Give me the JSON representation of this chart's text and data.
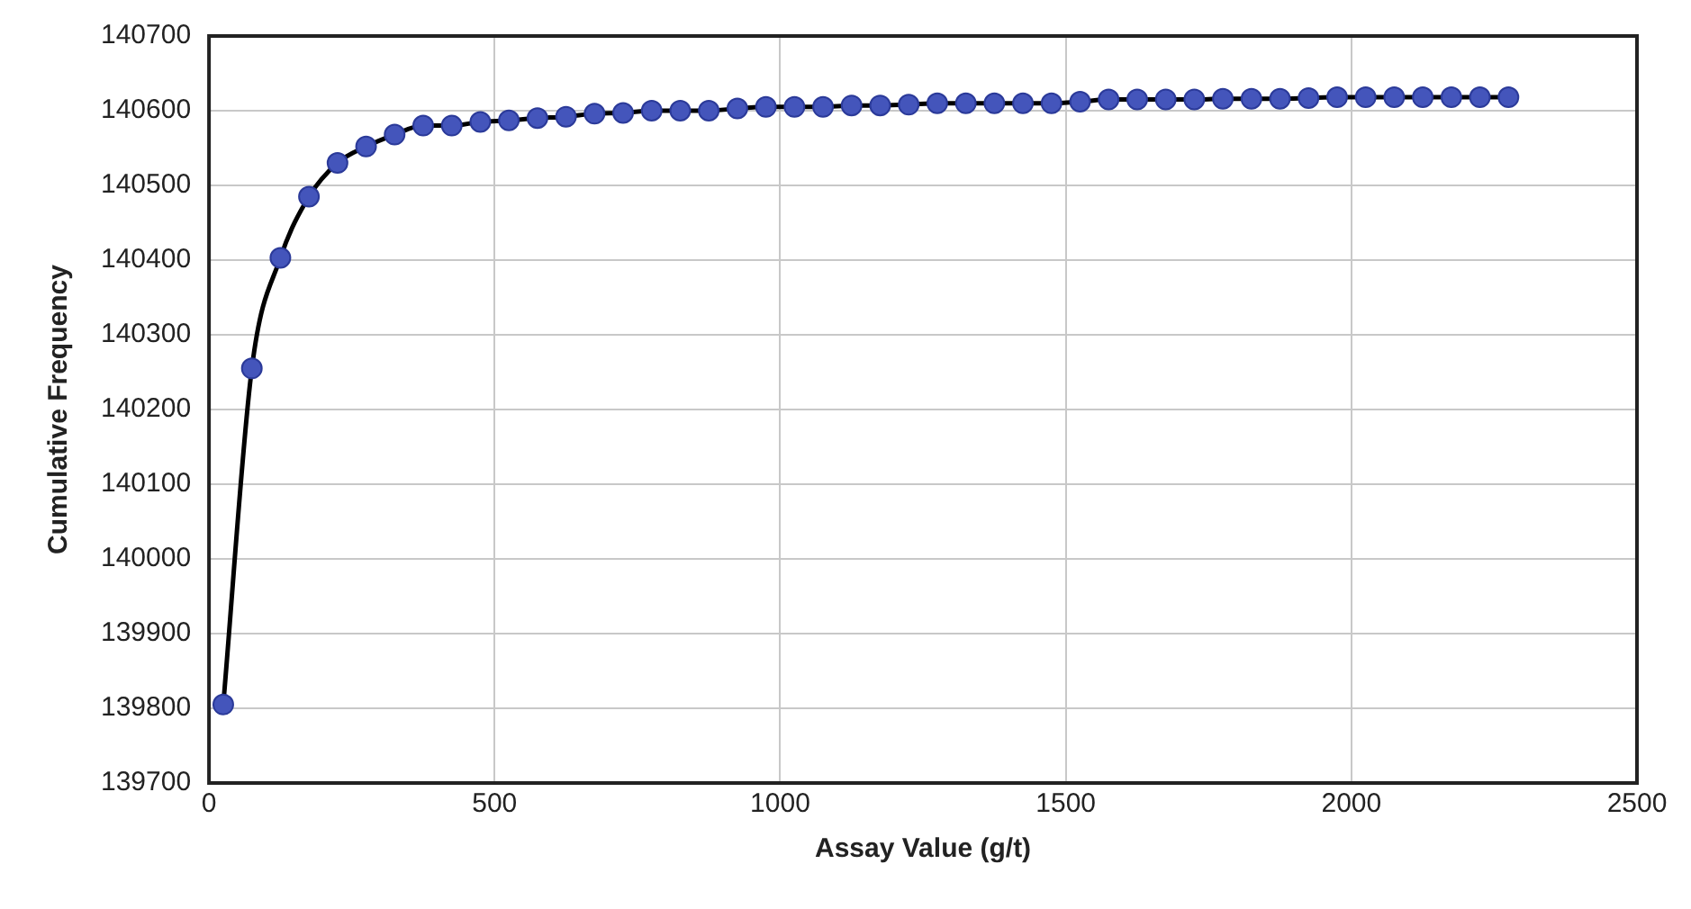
{
  "chart_data": {
    "type": "line",
    "xlabel": "Assay Value (g/t)",
    "ylabel": "Cumulative Frequency",
    "x": [
      25,
      75,
      125,
      175,
      225,
      275,
      325,
      375,
      425,
      475,
      525,
      575,
      625,
      675,
      725,
      775,
      825,
      875,
      925,
      975,
      1025,
      1075,
      1125,
      1175,
      1225,
      1275,
      1325,
      1375,
      1425,
      1475,
      1525,
      1575,
      1625,
      1675,
      1725,
      1775,
      1825,
      1875,
      1925,
      1975,
      2025,
      2075,
      2125,
      2175,
      2225,
      2275
    ],
    "series": [
      {
        "color": "#4455bb",
        "values": [
          139805,
          140255,
          140403,
          140485,
          140530,
          140552,
          140568,
          140580,
          140580,
          140585,
          140587,
          140590,
          140592,
          140596,
          140597,
          140600,
          140600,
          140600,
          140603,
          140605,
          140605,
          140605,
          140607,
          140607,
          140608,
          140610,
          140610,
          140610,
          140610,
          140610,
          140612,
          140615,
          140615,
          140615,
          140615,
          140616,
          140616,
          140616,
          140617,
          140618,
          140618,
          140618,
          140618,
          140618,
          140618,
          140618
        ]
      }
    ],
    "xlim": [
      0,
      2500
    ],
    "xticks": [
      0,
      500,
      1000,
      1500,
      2000,
      2500
    ],
    "ylim": [
      139700,
      140700
    ],
    "yticks": [
      139700,
      139800,
      139900,
      140000,
      140100,
      140200,
      140300,
      140400,
      140500,
      140600,
      140700
    ],
    "grid": true,
    "legend": false,
    "marker": "circle",
    "line_style": "solid"
  }
}
